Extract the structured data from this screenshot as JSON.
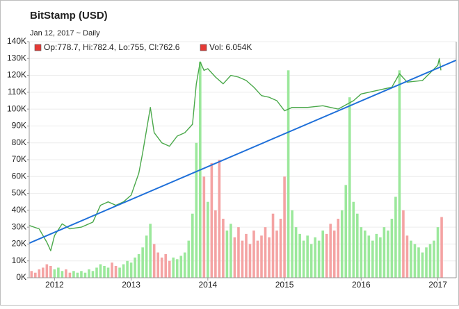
{
  "chart_data": {
    "type": "line",
    "title": "BitStamp (USD)",
    "subtitle": "Jan 12, 2017 ~ Daily",
    "legend": [
      "Op:778.7, Hi:782.4, Lo:755, Cl:762.6",
      "Vol: 6.054K"
    ],
    "legend_marker_color": "#e53935",
    "xlim": [
      2011.67,
      2017.24
    ],
    "xticks": [
      2012,
      2013,
      2014,
      2015,
      2016,
      2017
    ],
    "ylim": [
      0,
      140000
    ],
    "yticks": [
      {
        "value": 0,
        "label": "0K"
      },
      {
        "value": 10000,
        "label": "10K"
      },
      {
        "value": 20000,
        "label": "20K"
      },
      {
        "value": 30000,
        "label": "30K"
      },
      {
        "value": 40000,
        "label": "40K"
      },
      {
        "value": 50000,
        "label": "50K"
      },
      {
        "value": 60000,
        "label": "60K"
      },
      {
        "value": 70000,
        "label": "70K"
      },
      {
        "value": 80000,
        "label": "80K"
      },
      {
        "value": 90000,
        "label": "90K"
      },
      {
        "value": 100000,
        "label": "100K"
      },
      {
        "value": 110000,
        "label": "110K"
      },
      {
        "value": 120000,
        "label": "120K"
      },
      {
        "value": 130000,
        "label": "130K"
      },
      {
        "value": 140000,
        "label": "140K"
      }
    ],
    "grid": true,
    "volume": {
      "type": "bar",
      "color_up": "#9be89b",
      "color_down": "#f4a3a3",
      "x": [
        2011.7,
        2011.75,
        2011.8,
        2011.85,
        2011.9,
        2011.95,
        2012.0,
        2012.05,
        2012.1,
        2012.15,
        2012.2,
        2012.25,
        2012.3,
        2012.35,
        2012.4,
        2012.45,
        2012.5,
        2012.55,
        2012.6,
        2012.65,
        2012.7,
        2012.75,
        2012.8,
        2012.85,
        2012.9,
        2012.95,
        2013.0,
        2013.05,
        2013.1,
        2013.15,
        2013.2,
        2013.25,
        2013.3,
        2013.35,
        2013.4,
        2013.45,
        2013.5,
        2013.55,
        2013.6,
        2013.65,
        2013.7,
        2013.75,
        2013.8,
        2013.85,
        2013.9,
        2013.95,
        2014.0,
        2014.05,
        2014.1,
        2014.15,
        2014.2,
        2014.25,
        2014.3,
        2014.35,
        2014.4,
        2014.45,
        2014.5,
        2014.55,
        2014.6,
        2014.65,
        2014.7,
        2014.75,
        2014.8,
        2014.85,
        2014.9,
        2014.95,
        2015.0,
        2015.05,
        2015.1,
        2015.15,
        2015.2,
        2015.25,
        2015.3,
        2015.35,
        2015.4,
        2015.45,
        2015.5,
        2015.55,
        2015.6,
        2015.65,
        2015.7,
        2015.75,
        2015.8,
        2015.85,
        2015.9,
        2015.95,
        2016.0,
        2016.05,
        2016.1,
        2016.15,
        2016.2,
        2016.25,
        2016.3,
        2016.35,
        2016.4,
        2016.45,
        2016.5,
        2016.55,
        2016.6,
        2016.65,
        2016.7,
        2016.75,
        2016.8,
        2016.85,
        2016.9,
        2016.95,
        2017.0,
        2017.05
      ],
      "values": [
        4000,
        3000,
        5000,
        6000,
        8000,
        7000,
        5000,
        6000,
        4000,
        5000,
        3000,
        4000,
        3000,
        4000,
        3000,
        5000,
        4000,
        6000,
        8000,
        7000,
        6000,
        9000,
        7000,
        6000,
        8000,
        10000,
        9000,
        12000,
        14000,
        18000,
        25000,
        32000,
        20000,
        15000,
        12000,
        14000,
        10000,
        12000,
        11000,
        13000,
        15000,
        22000,
        38000,
        80000,
        128000,
        60000,
        45000,
        68000,
        40000,
        70000,
        35000,
        28000,
        32000,
        24000,
        30000,
        22000,
        26000,
        20000,
        28000,
        22000,
        25000,
        30000,
        24000,
        38000,
        28000,
        35000,
        60000,
        123000,
        40000,
        30000,
        26000,
        22000,
        25000,
        20000,
        24000,
        22000,
        28000,
        26000,
        32000,
        28000,
        35000,
        40000,
        55000,
        107000,
        45000,
        38000,
        30000,
        28000,
        25000,
        22000,
        26000,
        24000,
        30000,
        28000,
        35000,
        48000,
        123000,
        40000,
        25000,
        22000,
        20000,
        18000,
        15000,
        18000,
        20000,
        22000,
        30000,
        36000
      ]
    },
    "price": {
      "color": "#4aa84a",
      "x": [
        2011.67,
        2011.8,
        2011.9,
        2011.95,
        2012.0,
        2012.1,
        2012.2,
        2012.35,
        2012.5,
        2012.6,
        2012.7,
        2012.8,
        2012.9,
        2013.0,
        2013.1,
        2013.15,
        2013.25,
        2013.3,
        2013.4,
        2013.5,
        2013.6,
        2013.7,
        2013.8,
        2013.85,
        2013.9,
        2013.95,
        2014.0,
        2014.1,
        2014.2,
        2014.3,
        2014.4,
        2014.5,
        2014.6,
        2014.7,
        2014.8,
        2014.9,
        2015.0,
        2015.1,
        2015.3,
        2015.5,
        2015.7,
        2015.9,
        2016.0,
        2016.2,
        2016.4,
        2016.5,
        2016.6,
        2016.8,
        2017.0,
        2017.02,
        2017.04
      ],
      "values": [
        31000,
        29000,
        21000,
        16000,
        25000,
        32000,
        29000,
        30000,
        33000,
        43000,
        45000,
        43000,
        45000,
        49000,
        62000,
        74000,
        101000,
        86000,
        80000,
        78000,
        84000,
        86000,
        91000,
        115000,
        128000,
        123000,
        124000,
        119000,
        115000,
        120000,
        119000,
        117000,
        113000,
        108000,
        107000,
        105000,
        99000,
        101000,
        101000,
        102000,
        100000,
        105000,
        109000,
        111000,
        113000,
        121000,
        116000,
        117000,
        126000,
        130000,
        123000
      ]
    },
    "trend": {
      "color": "#1e6fd9",
      "x": [
        2011.67,
        2017.24
      ],
      "values": [
        20500,
        129000
      ]
    }
  }
}
